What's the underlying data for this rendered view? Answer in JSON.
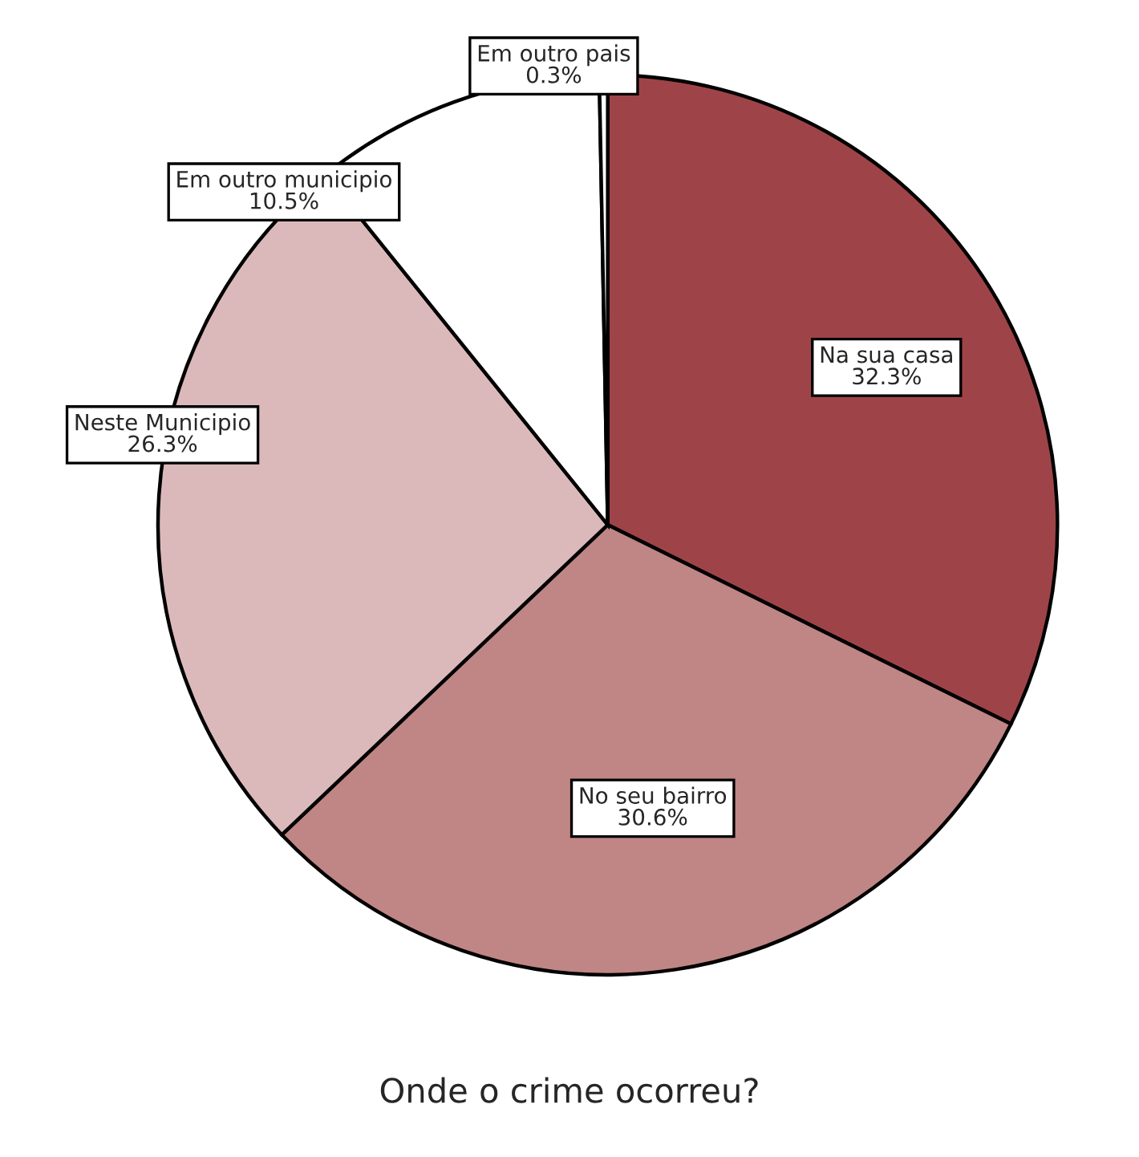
{
  "chart_data": {
    "type": "pie",
    "title": "Onde o crime ocorreu?",
    "categories": [
      "Na sua casa",
      "No seu bairro",
      "Neste Municipio",
      "Em outro municipio",
      "Em outro pais"
    ],
    "values": [
      32.3,
      30.6,
      26.3,
      10.5,
      0.3
    ],
    "colors": [
      "#9e4448",
      "#c08585",
      "#dbb9ba",
      "#ffffff",
      "#ffffff"
    ],
    "value_labels": [
      "32.3%",
      "30.6%",
      "26.3%",
      "10.5%",
      "0.3%"
    ]
  }
}
